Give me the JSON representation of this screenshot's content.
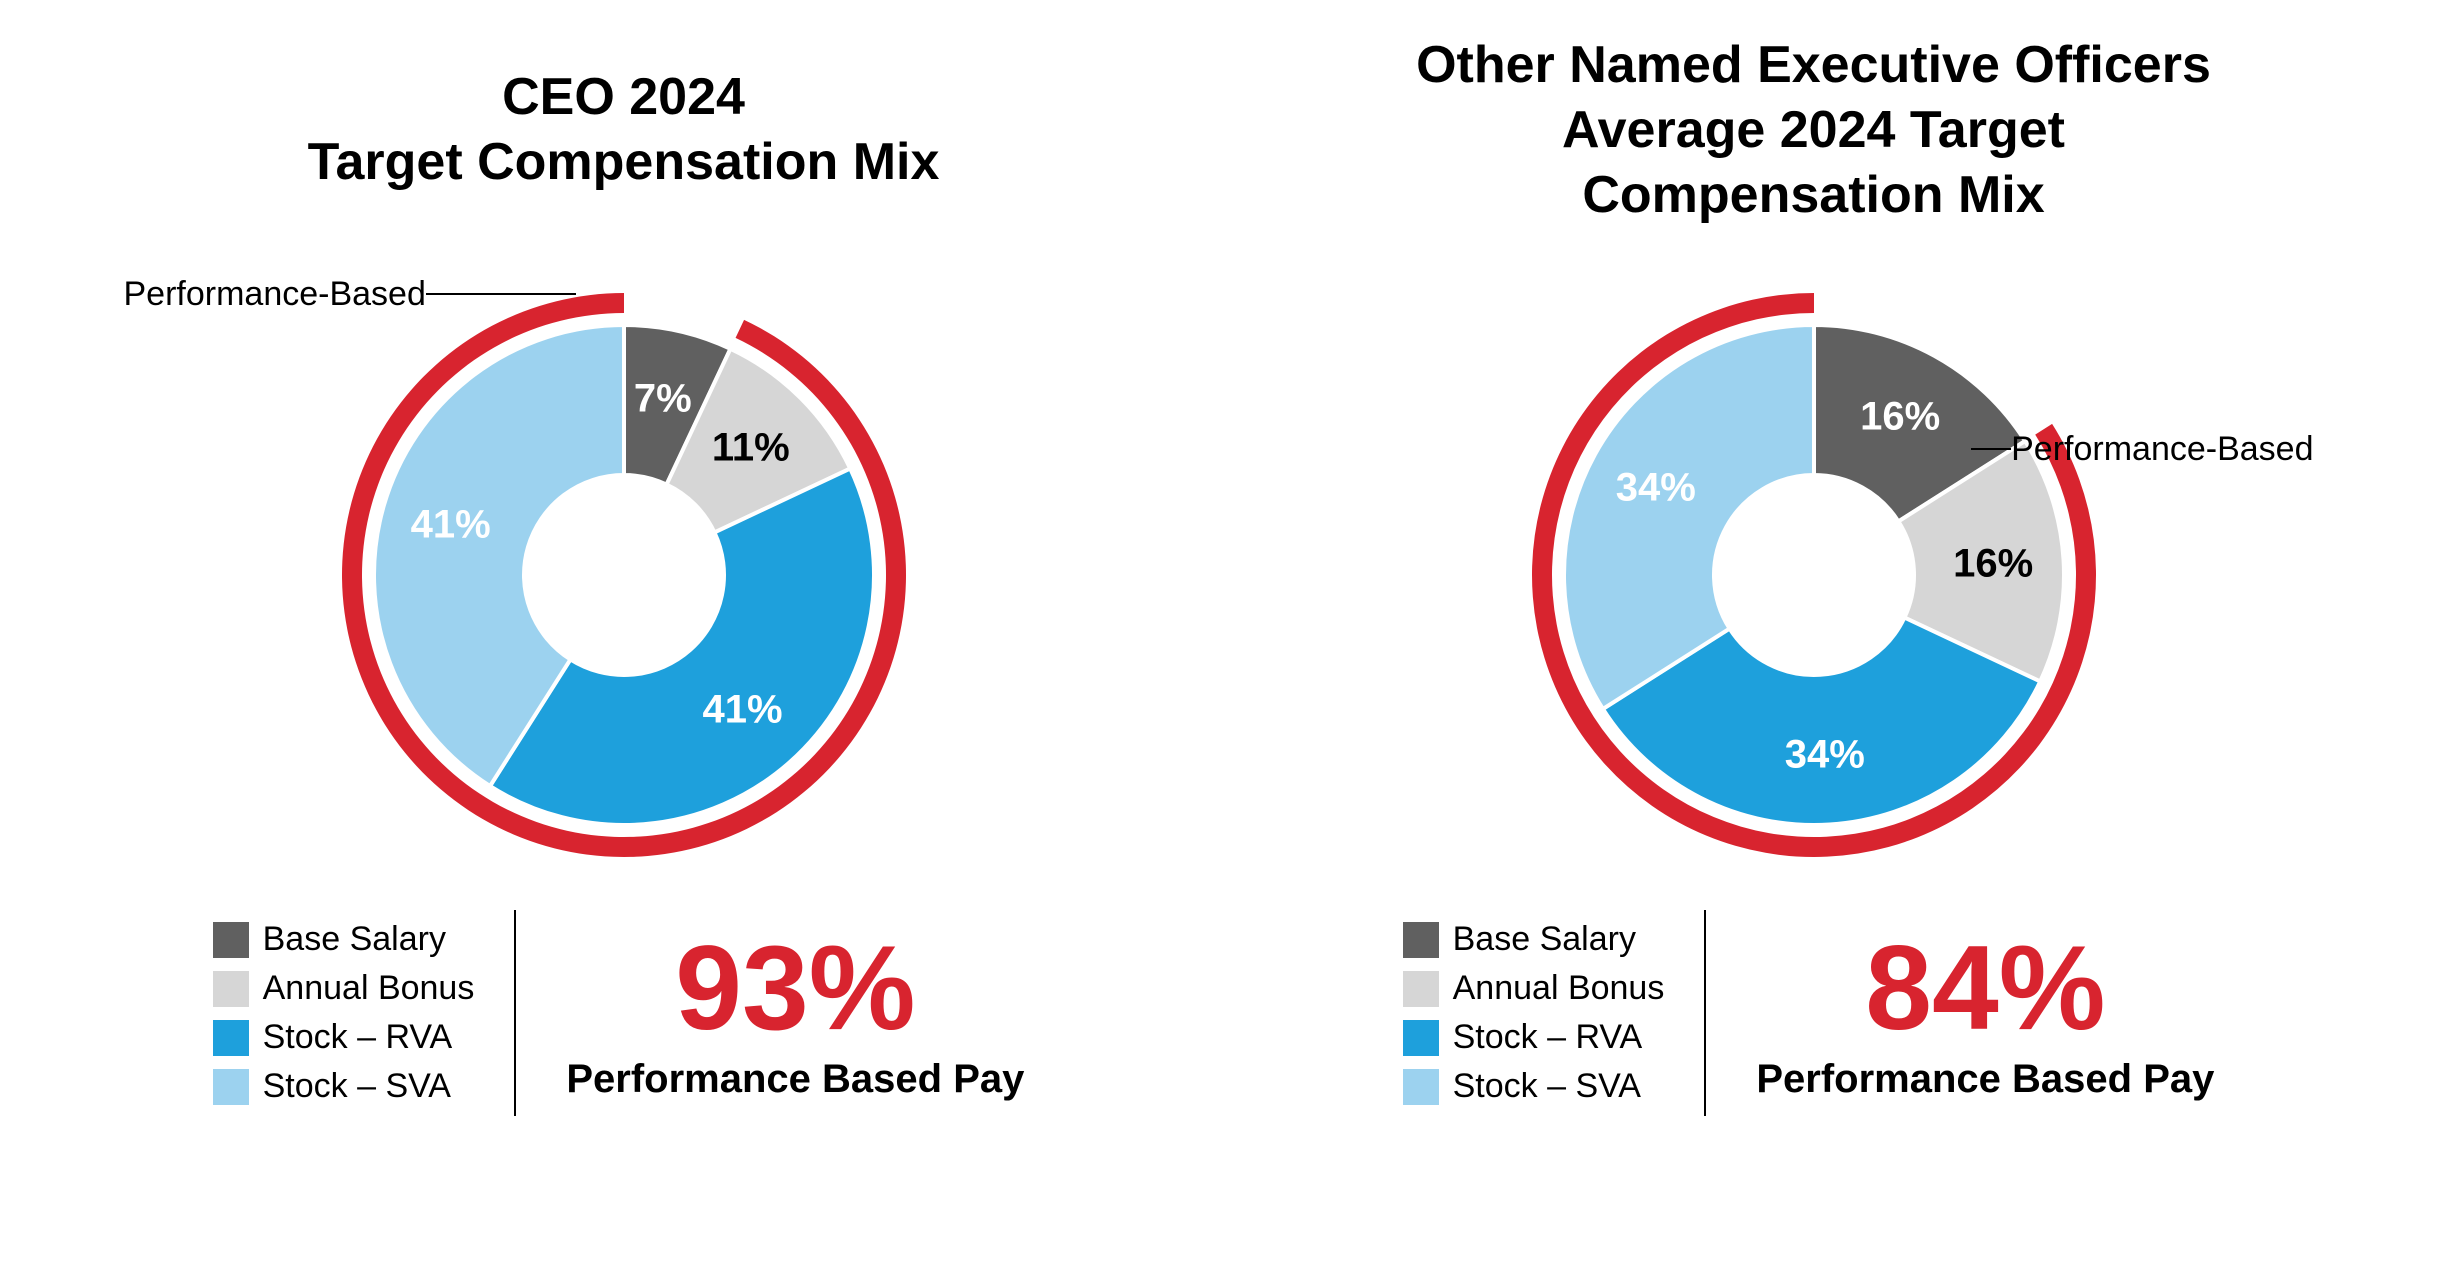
{
  "colors": {
    "base_salary": "#606060",
    "annual_bonus": "#d6d6d6",
    "stock_rva": "#1ea0dc",
    "stock_sva": "#9cd2ef",
    "arc_red": "#d8242f",
    "white": "#ffffff",
    "black": "#000000"
  },
  "legend_labels": {
    "base_salary": "Base Salary",
    "annual_bonus": "Annual Bonus",
    "stock_rva": "Stock – RVA",
    "stock_sva": "Stock – SVA"
  },
  "annotation_text": "Performance-Based",
  "big_stat_label": "Performance Based Pay",
  "charts": [
    {
      "id": "ceo",
      "title": "CEO 2024\nTarget Compensation Mix",
      "slices": [
        {
          "key": "base_salary",
          "value": 7,
          "label": "7%",
          "label_color": "#ffffff"
        },
        {
          "key": "annual_bonus",
          "value": 11,
          "label": "11%",
          "label_color": "#000000"
        },
        {
          "key": "stock_rva",
          "value": 41,
          "label": "41%",
          "label_color": "#ffffff"
        },
        {
          "key": "stock_sva",
          "value": 41,
          "label": "41%",
          "label_color": "#ffffff"
        }
      ],
      "performance_pct": 93,
      "big_stat": "93%",
      "arc_start_slice": 1,
      "arc_end_slice": 3,
      "annotation_side": "left",
      "donut": {
        "outer_radius": 250,
        "inner_radius": 100,
        "label_radius": 180,
        "arc_inner_radius": 262,
        "arc_outer_radius": 282,
        "slice_label_fontsize": 40
      }
    },
    {
      "id": "neo",
      "title": "Other Named Executive Officers\nAverage 2024 Target\nCompensation Mix",
      "slices": [
        {
          "key": "base_salary",
          "value": 16,
          "label": "16%",
          "label_color": "#ffffff"
        },
        {
          "key": "annual_bonus",
          "value": 16,
          "label": "16%",
          "label_color": "#000000"
        },
        {
          "key": "stock_rva",
          "value": 34,
          "label": "34%",
          "label_color": "#ffffff"
        },
        {
          "key": "stock_sva",
          "value": 34,
          "label": "34%",
          "label_color": "#ffffff"
        }
      ],
      "performance_pct": 84,
      "big_stat": "84%",
      "arc_start_slice": 1,
      "arc_end_slice": 3,
      "annotation_side": "right",
      "donut": {
        "outer_radius": 250,
        "inner_radius": 100,
        "label_radius": 180,
        "arc_inner_radius": 262,
        "arc_outer_radius": 282,
        "slice_label_fontsize": 40
      }
    }
  ]
}
